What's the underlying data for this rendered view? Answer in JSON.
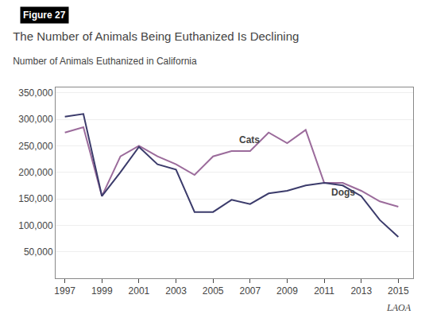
{
  "chart_data": {
    "type": "line",
    "title": "The Number of Animals Being Euthanized Is Declining",
    "subtitle": "Number of Animals Euthanized in California",
    "x": [
      1997,
      1998,
      1999,
      2000,
      2001,
      2002,
      2003,
      2004,
      2005,
      2006,
      2007,
      2008,
      2009,
      2010,
      2011,
      2012,
      2013,
      2014,
      2015
    ],
    "series": [
      {
        "color": "#9b6b9b",
        "values": [
          275000,
          285000,
          155000,
          230000,
          250000,
          230000,
          215000,
          195000,
          230000,
          240000,
          240000,
          275000,
          255000,
          280000,
          180000,
          180000,
          165000,
          145000,
          135000
        ]
      },
      {
        "color": "#3b3b6b",
        "values": [
          305000,
          310000,
          155000,
          200000,
          248000,
          215000,
          205000,
          125000,
          125000,
          148000,
          140000,
          160000,
          165000,
          175000,
          180000,
          175000,
          155000,
          110000,
          78000
        ]
      }
    ],
    "annotations": [
      {
        "text": "Figure 27"
      },
      {
        "text": "LAOA"
      },
      {
        "text": "Cats",
        "x": 2006.3,
        "y": 248000
      },
      {
        "text": "Dogs",
        "x": 2011.3,
        "y": 148000
      }
    ],
    "xlim": [
      1996.5,
      2015.8
    ],
    "xticks": [
      1997,
      1999,
      2001,
      2003,
      2005,
      2007,
      2009,
      2011,
      2013,
      2015
    ],
    "ylim": [
      0,
      360000
    ],
    "yticks": [
      {
        "value": 50000,
        "label": "50,000"
      },
      {
        "value": 100000,
        "label": "100,000"
      },
      {
        "value": 150000,
        "label": "150,000"
      },
      {
        "value": 200000,
        "label": "200,000"
      },
      {
        "value": 250000,
        "label": "250,000"
      },
      {
        "value": 300000,
        "label": "300,000"
      },
      {
        "value": 350000,
        "label": "350,000"
      }
    ],
    "grid": true
  }
}
